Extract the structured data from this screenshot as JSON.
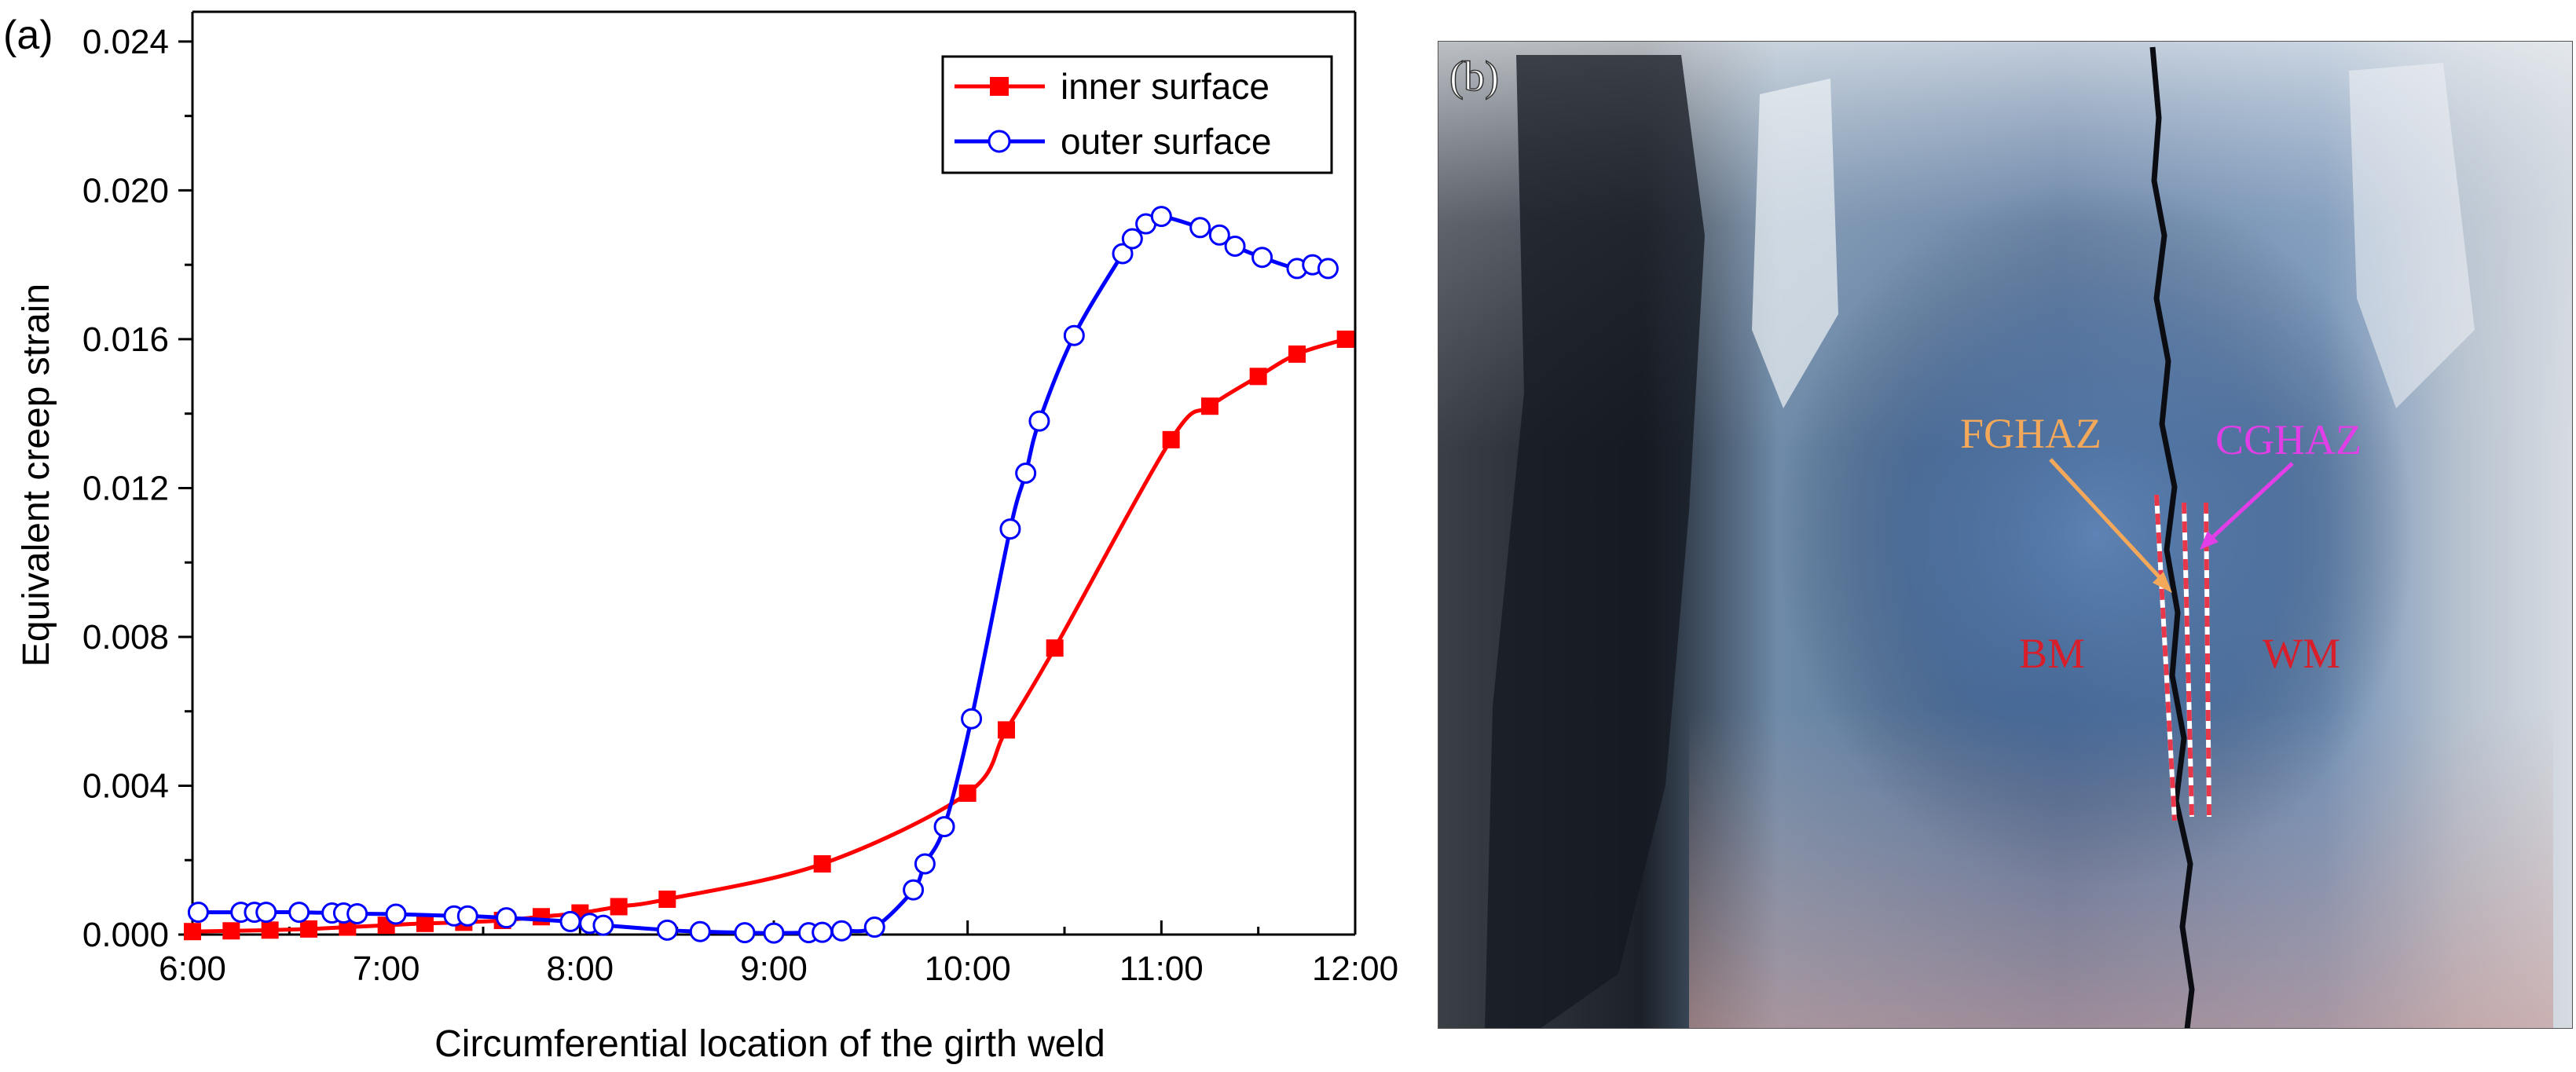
{
  "panel_a": {
    "label": "(a)"
  },
  "panel_b": {
    "label": "(b)",
    "annotations": [
      {
        "text": "FGHAZ",
        "color": "#f4a95a"
      },
      {
        "text": "CGHAZ",
        "color": "#e23ee8"
      },
      {
        "text": "BM",
        "color": "#d81e2a"
      },
      {
        "text": "WM",
        "color": "#d81e2a"
      }
    ]
  },
  "chart_data": {
    "type": "line",
    "title": "",
    "xlabel": "Circumferential location of the girth weld",
    "ylabel": "Equivalent creep strain",
    "xlim": [
      6,
      12
    ],
    "ylim": [
      0,
      0.0248
    ],
    "xticks": [
      6,
      7,
      8,
      9,
      10,
      11,
      12
    ],
    "xtick_labels": [
      "6:00",
      "7:00",
      "8:00",
      "9:00",
      "10:00",
      "11:00",
      "12:00"
    ],
    "yticks": [
      0,
      0.004,
      0.008,
      0.012,
      0.016,
      0.02,
      0.024
    ],
    "ytick_labels": [
      "0.000",
      "0.004",
      "0.008",
      "0.012",
      "0.016",
      "0.020",
      "0.024"
    ],
    "legend_position": "top-right",
    "series": [
      {
        "name": "inner surface",
        "color": "#ff0000",
        "marker": "filled-square",
        "points": [
          [
            6.0,
            8e-05
          ],
          [
            6.2,
            0.0001
          ],
          [
            6.4,
            0.00012
          ],
          [
            6.6,
            0.00015
          ],
          [
            6.8,
            0.0002
          ],
          [
            7.0,
            0.00025
          ],
          [
            7.2,
            0.0003
          ],
          [
            7.4,
            0.00033
          ],
          [
            7.6,
            0.00038
          ],
          [
            7.8,
            0.00048
          ],
          [
            8.0,
            0.00058
          ],
          [
            8.2,
            0.00075
          ],
          [
            8.45,
            0.00095
          ],
          [
            9.25,
            0.0019
          ],
          [
            10.0,
            0.0038
          ],
          [
            10.2,
            0.0055
          ],
          [
            10.45,
            0.0077
          ],
          [
            11.05,
            0.0133
          ],
          [
            11.25,
            0.0142
          ],
          [
            11.5,
            0.015
          ],
          [
            11.7,
            0.0156
          ],
          [
            11.95,
            0.016
          ]
        ]
      },
      {
        "name": "outer surface",
        "color": "#0000ff",
        "marker": "open-circle",
        "points": [
          [
            6.03,
            0.0006
          ],
          [
            6.25,
            0.0006
          ],
          [
            6.32,
            0.0006
          ],
          [
            6.38,
            0.0006
          ],
          [
            6.55,
            0.0006
          ],
          [
            6.72,
            0.00058
          ],
          [
            6.78,
            0.00058
          ],
          [
            6.85,
            0.00056
          ],
          [
            7.05,
            0.00055
          ],
          [
            7.35,
            0.0005
          ],
          [
            7.42,
            0.0005
          ],
          [
            7.62,
            0.00045
          ],
          [
            7.95,
            0.00035
          ],
          [
            8.05,
            0.0003
          ],
          [
            8.12,
            0.00025
          ],
          [
            8.45,
            0.00012
          ],
          [
            8.62,
            8e-05
          ],
          [
            8.85,
            5e-05
          ],
          [
            9.0,
            4e-05
          ],
          [
            9.18,
            5e-05
          ],
          [
            9.25,
            6e-05
          ],
          [
            9.35,
            0.0001
          ],
          [
            9.52,
            0.0002
          ],
          [
            9.72,
            0.0012
          ],
          [
            9.78,
            0.0019
          ],
          [
            9.88,
            0.0029
          ],
          [
            10.02,
            0.0058
          ],
          [
            10.22,
            0.0109
          ],
          [
            10.3,
            0.0124
          ],
          [
            10.37,
            0.0138
          ],
          [
            10.55,
            0.0161
          ],
          [
            10.8,
            0.0183
          ],
          [
            10.85,
            0.0187
          ],
          [
            10.92,
            0.0191
          ],
          [
            11.0,
            0.0193
          ],
          [
            11.2,
            0.019
          ],
          [
            11.3,
            0.0188
          ],
          [
            11.38,
            0.0185
          ],
          [
            11.52,
            0.0182
          ],
          [
            11.7,
            0.0179
          ],
          [
            11.78,
            0.018
          ],
          [
            11.86,
            0.0179
          ]
        ]
      }
    ]
  }
}
